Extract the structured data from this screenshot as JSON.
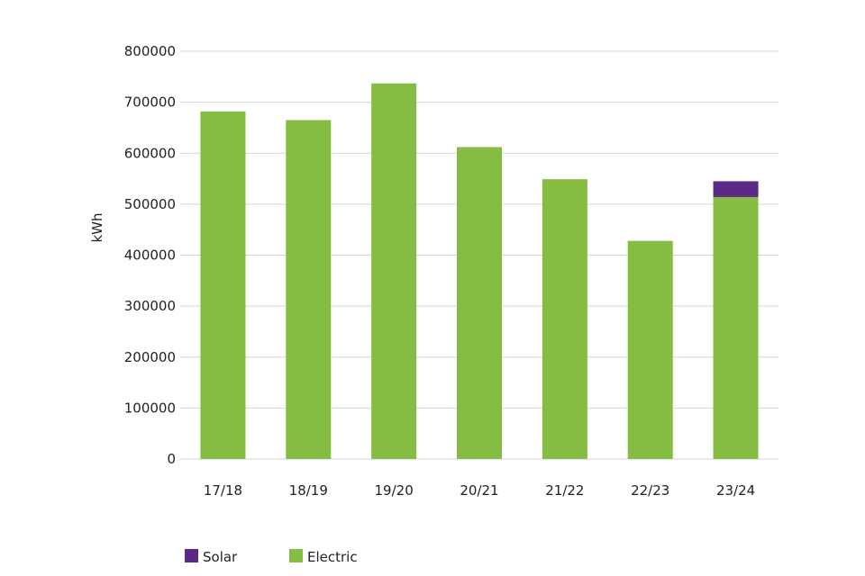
{
  "chart_data": {
    "type": "bar",
    "stacked": true,
    "categories": [
      "17/18",
      "18/19",
      "19/20",
      "20/21",
      "21/22",
      "22/23",
      "23/24"
    ],
    "series": [
      {
        "name": "Electric",
        "color": "#84bd41",
        "values": [
          682000,
          665000,
          737000,
          612000,
          549000,
          428000,
          514000
        ]
      },
      {
        "name": "Solar",
        "color": "#5b2a86",
        "values": [
          0,
          0,
          0,
          0,
          0,
          0,
          31000
        ]
      }
    ],
    "title": "",
    "xlabel": "",
    "ylabel": "kWh",
    "ylim": [
      0,
      800000
    ],
    "yticks": [
      0,
      100000,
      200000,
      300000,
      400000,
      500000,
      600000,
      700000,
      800000
    ],
    "grid": true,
    "legend": {
      "position": "bottom-left",
      "items": [
        {
          "label": "Solar",
          "color": "#5b2a86"
        },
        {
          "label": "Electric",
          "color": "#84bd41"
        }
      ]
    }
  }
}
